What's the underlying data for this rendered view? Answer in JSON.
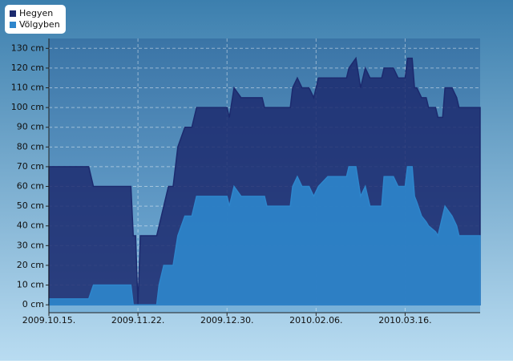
{
  "chart_data": {
    "type": "area",
    "x": [
      "2009.10.15.",
      "2009.11.01.",
      "2009.11.03.",
      "2009.11.19.",
      "2009.11.20.",
      "2009.11.21.",
      "2009.11.22.",
      "2009.11.23.",
      "2009.11.30.",
      "2009.12.01.",
      "2009.12.03.",
      "2009.12.05.",
      "2009.12.07.",
      "2009.12.09.",
      "2009.12.12.",
      "2009.12.15.",
      "2009.12.17.",
      "2009.12.30.",
      "2009.12.31.",
      "2010.01.02.",
      "2010.01.05.",
      "2010.01.14.",
      "2010.01.15.",
      "2010.01.16.",
      "2010.01.26.",
      "2010.01.27.",
      "2010.01.29.",
      "2010.01.31.",
      "2010.02.03.",
      "2010.02.05.",
      "2010.02.07.",
      "2010.02.11.",
      "2010.02.19.",
      "2010.02.20.",
      "2010.02.23.",
      "2010.02.25.",
      "2010.02.27.",
      "2010.03.01.",
      "2010.03.06.",
      "2010.03.07.",
      "2010.03.11.",
      "2010.03.13.",
      "2010.03.16.",
      "2010.03.17.",
      "2010.03.19.",
      "2010.03.20.",
      "2010.03.21.",
      "2010.03.23.",
      "2010.03.25.",
      "2010.03.26.",
      "2010.03.29.",
      "2010.03.30.",
      "2010.04.01.",
      "2010.04.02.",
      "2010.04.05.",
      "2010.04.07.",
      "2010.04.08.",
      "2010.04.17."
    ],
    "series": [
      {
        "name": "Hegyen",
        "color": "#1c2a6e",
        "values": [
          70,
          70,
          60,
          60,
          35,
          35,
          0,
          35,
          35,
          40,
          50,
          60,
          60,
          80,
          90,
          90,
          100,
          100,
          95,
          110,
          105,
          105,
          100,
          100,
          100,
          110,
          115,
          110,
          110,
          105,
          115,
          115,
          115,
          120,
          125,
          110,
          120,
          115,
          115,
          120,
          120,
          115,
          115,
          125,
          125,
          110,
          110,
          105,
          105,
          100,
          100,
          95,
          95,
          110,
          110,
          105,
          100,
          100
        ]
      },
      {
        "name": "Völgyben",
        "color": "#2e86cc",
        "values": [
          3,
          3,
          10,
          10,
          0,
          0,
          0,
          0,
          0,
          10,
          20,
          20,
          20,
          35,
          45,
          45,
          55,
          55,
          50,
          60,
          55,
          55,
          55,
          50,
          50,
          60,
          65,
          60,
          60,
          55,
          60,
          65,
          65,
          70,
          70,
          55,
          60,
          50,
          50,
          65,
          65,
          60,
          60,
          70,
          70,
          55,
          52,
          45,
          42,
          40,
          37,
          35,
          45,
          50,
          45,
          40,
          35,
          35
        ]
      }
    ],
    "xlim": [
      "2009.10.15.",
      "2010.04.17."
    ],
    "xticks": [
      "2009.10.15.",
      "2009.11.22.",
      "2009.12.30.",
      "2010.02.06.",
      "2010.03.16."
    ],
    "ylim": [
      -4,
      135
    ],
    "yticks": [
      {
        "value": 0,
        "label": "0 cm"
      },
      {
        "value": 10,
        "label": "10 cm"
      },
      {
        "value": 20,
        "label": "20 cm"
      },
      {
        "value": 30,
        "label": "30 cm"
      },
      {
        "value": 40,
        "label": "40 cm"
      },
      {
        "value": 50,
        "label": "50 cm"
      },
      {
        "value": 60,
        "label": "60 cm"
      },
      {
        "value": 70,
        "label": "70 cm"
      },
      {
        "value": 80,
        "label": "80 cm"
      },
      {
        "value": 90,
        "label": "90 cm"
      },
      {
        "value": 100,
        "label": "100 cm"
      },
      {
        "value": 110,
        "label": "110 cm"
      },
      {
        "value": 120,
        "label": "120 cm"
      },
      {
        "value": 130,
        "label": "130 cm"
      }
    ],
    "grid": true,
    "legend": "top-left"
  }
}
